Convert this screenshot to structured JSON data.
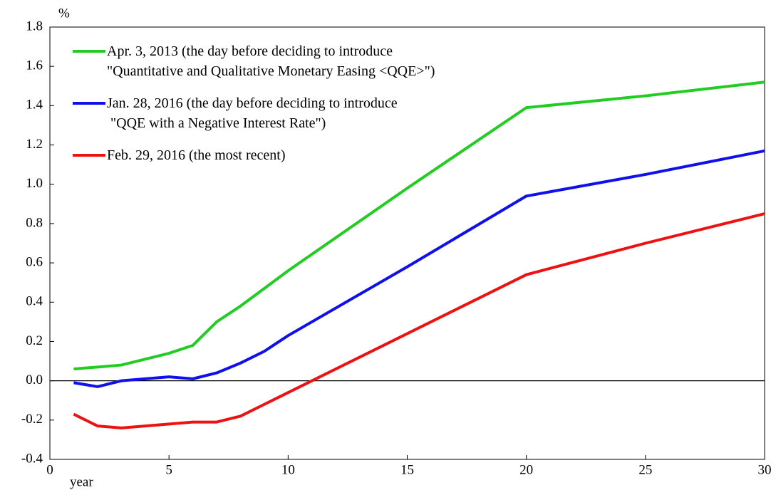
{
  "chart_data": {
    "type": "line",
    "y_axis_label": "%",
    "x_axis_label": "year",
    "x": [
      1,
      2,
      3,
      4,
      5,
      6,
      7,
      8,
      9,
      10,
      15,
      20,
      25,
      30
    ],
    "series": [
      {
        "name": "Apr. 3, 2013 (the day before deciding to introduce\n\"Quantitative and Qualitative Monetary Easing <QQE>\")",
        "color": "#22cc22",
        "values": [
          0.06,
          0.07,
          0.08,
          0.11,
          0.14,
          0.18,
          0.3,
          0.38,
          0.47,
          0.56,
          0.98,
          1.39,
          1.45,
          1.52
        ]
      },
      {
        "name": "Jan. 28, 2016 (the day before deciding to introduce\n \"QQE with a Negative Interest Rate\")",
        "color": "#1010ee",
        "values": [
          -0.01,
          -0.03,
          0.0,
          0.01,
          0.02,
          0.01,
          0.04,
          0.09,
          0.15,
          0.23,
          0.58,
          0.94,
          1.05,
          1.17
        ]
      },
      {
        "name": "Feb. 29, 2016 (the most recent)",
        "color": "#ee1111",
        "values": [
          -0.17,
          -0.23,
          -0.24,
          -0.23,
          -0.22,
          -0.21,
          -0.21,
          -0.18,
          -0.12,
          -0.06,
          0.24,
          0.54,
          0.7,
          0.85
        ]
      }
    ],
    "xlim": [
      0,
      30
    ],
    "xticks": [
      0,
      5,
      10,
      15,
      20,
      25,
      30
    ],
    "ylim": [
      -0.4,
      1.8
    ],
    "yticks": [
      -0.4,
      -0.2,
      {
        "value": 0,
        "label": "0.0"
      },
      0.2,
      0.4,
      0.6,
      0.8,
      {
        "value": 1,
        "label": "1.0"
      },
      1.2,
      1.4,
      1.6,
      1.8
    ],
    "zero_line": true
  }
}
